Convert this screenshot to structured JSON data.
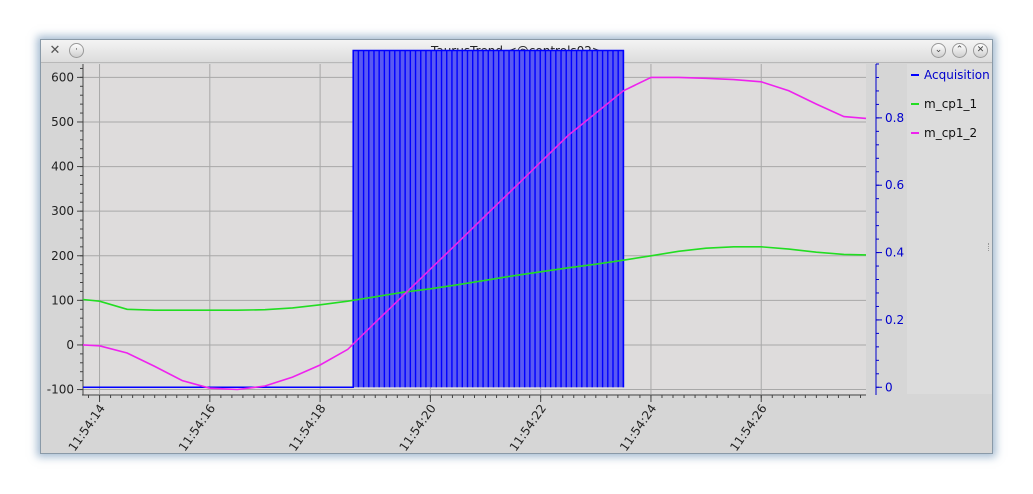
{
  "window": {
    "title": "TaurusTrend <@controls02>",
    "app_icon": "tools-icon",
    "buttons": [
      "menu-button",
      "minimize-button",
      "maximize-button",
      "close-button"
    ]
  },
  "colors": {
    "plot_bg": "#dedcdc",
    "grid": "#a8a8a8",
    "acquisition": "#0000ff",
    "acquisition_fill": "#5a5af2",
    "m_cp1_1": "#22dd22",
    "m_cp1_2": "#ee22ee",
    "left_axis": "#222222",
    "right_axis": "#0000cc"
  },
  "chart_data": {
    "type": "line",
    "x_axis": {
      "ticks": [
        "11:54:14",
        "11:54:16",
        "11:54:18",
        "11:54:20",
        "11:54:22",
        "11:54:24",
        "11:54:26"
      ],
      "range": [
        "11:54:13.7",
        "11:54:27.9"
      ]
    },
    "y_left": {
      "ylim": [
        -110,
        630
      ],
      "ticks": [
        -100,
        0,
        100,
        200,
        300,
        400,
        500,
        600
      ]
    },
    "y_right": {
      "ylim": [
        -0.02,
        0.96
      ],
      "ticks": [
        0,
        0.2,
        0.4,
        0.6,
        0.8
      ]
    },
    "grid": true,
    "legend_position": "right",
    "series": [
      {
        "name": "Acquisition",
        "axis": "right",
        "x": [
          "11:54:13.7",
          "11:54:18.6",
          "11:54:18.6",
          "11:54:23.5",
          "11:54:23.5"
        ],
        "values": [
          0,
          0,
          1,
          1,
          0
        ],
        "pulse_band": [
          "11:54:18.6",
          "11:54:23.5"
        ],
        "pulse_count": 52
      },
      {
        "name": "m_cp1_1",
        "axis": "left",
        "x": [
          "11:54:13.7",
          "11:54:14.0",
          "11:54:14.5",
          "11:54:15.0",
          "11:54:15.5",
          "11:54:16.0",
          "11:54:16.5",
          "11:54:17.0",
          "11:54:17.5",
          "11:54:18.0",
          "11:54:18.5",
          "11:54:19.0",
          "11:54:19.5",
          "11:54:20.0",
          "11:54:20.5",
          "11:54:21.0",
          "11:54:21.5",
          "11:54:22.0",
          "11:54:22.5",
          "11:54:23.0",
          "11:54:23.5",
          "11:54:24.0",
          "11:54:24.5",
          "11:54:25.0",
          "11:54:25.5",
          "11:54:26.0",
          "11:54:26.5",
          "11:54:27.0",
          "11:54:27.5",
          "11:54:27.9"
        ],
        "values": [
          102,
          98,
          80,
          78,
          78,
          78,
          78,
          79,
          83,
          90,
          98,
          108,
          118,
          126,
          135,
          145,
          155,
          164,
          173,
          181,
          190,
          200,
          210,
          217,
          220,
          220,
          215,
          208,
          203,
          202
        ]
      },
      {
        "name": "m_cp1_2",
        "axis": "left",
        "x": [
          "11:54:13.7",
          "11:54:14.0",
          "11:54:14.5",
          "11:54:15.0",
          "11:54:15.5",
          "11:54:16.0",
          "11:54:16.5",
          "11:54:17.0",
          "11:54:17.5",
          "11:54:18.0",
          "11:54:18.5",
          "11:54:19.0",
          "11:54:19.5",
          "11:54:20.0",
          "11:54:20.5",
          "11:54:21.0",
          "11:54:21.5",
          "11:54:22.0",
          "11:54:22.5",
          "11:54:23.0",
          "11:54:23.5",
          "11:54:24.0",
          "11:54:24.5",
          "11:54:25.0",
          "11:54:25.5",
          "11:54:26.0",
          "11:54:26.5",
          "11:54:27.0",
          "11:54:27.5",
          "11:54:27.9"
        ],
        "values": [
          0,
          -2,
          -18,
          -48,
          -80,
          -97,
          -100,
          -92,
          -72,
          -45,
          -10,
          50,
          110,
          170,
          230,
          290,
          350,
          410,
          470,
          520,
          570,
          600,
          600,
          598,
          595,
          590,
          570,
          540,
          512,
          508
        ]
      }
    ]
  }
}
